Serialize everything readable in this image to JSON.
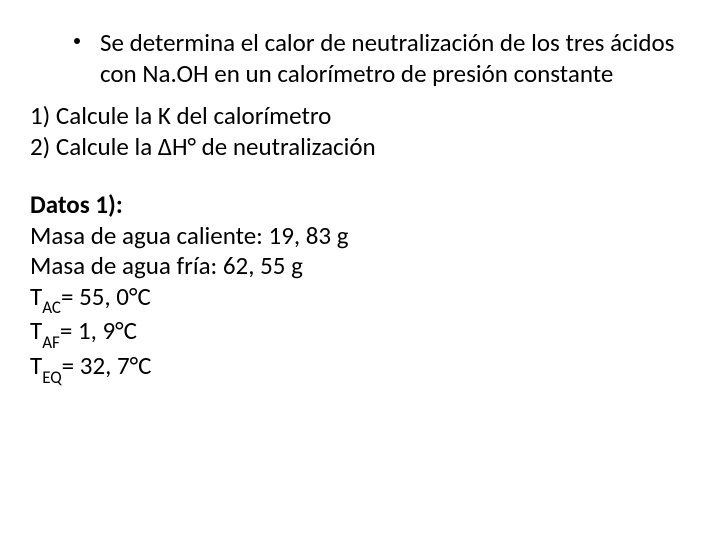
{
  "text_color": "#000000",
  "background_color": "#ffffff",
  "font_family": "Calibri, Arial, sans-serif",
  "base_fontsize": 25,
  "bullet": {
    "text": "Se determina el calor de neutralización de los tres ácidos con Na.OH  en un calorímetro de presión constante"
  },
  "numbered": {
    "item1_prefix": "1)  ",
    "item1_text": "Calcule la K del calorímetro",
    "item2_prefix": "2)  ",
    "item2_text": "Calcule la ΔH° de neutralización"
  },
  "datos": {
    "heading": "Datos 1):",
    "line1": "Masa de agua caliente: 19, 83 g",
    "line2": "Masa de agua fría: 62, 55 g",
    "tac_label_pre": "T",
    "tac_sub": "AC",
    "tac_rest": "= 55, 0°C",
    "taf_label_pre": "T",
    "taf_sub": "AF",
    "taf_rest": "= 1, 9°C",
    "teq_label_pre": "T",
    "teq_sub": "EQ",
    "teq_rest": "= 32, 7°C"
  }
}
